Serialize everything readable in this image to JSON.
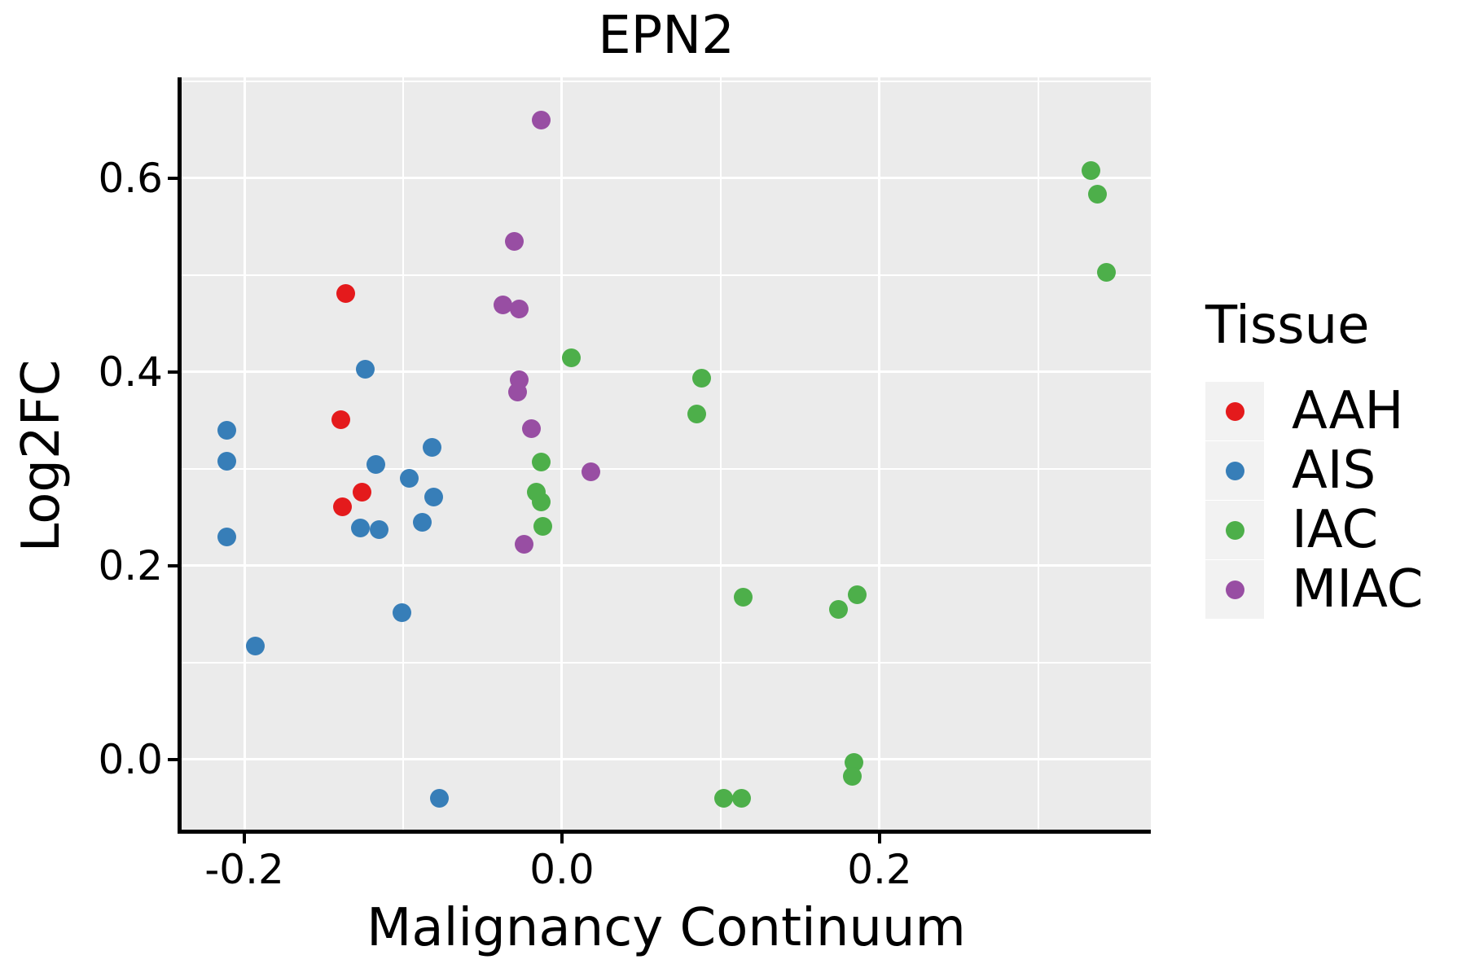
{
  "title": "EPN2",
  "panel_background": "#EBEBEB",
  "grid_color": "#FFFFFF",
  "legend": {
    "title": "Tissue",
    "key_background": "#F2F2F2",
    "entries": [
      {
        "label": "AAH",
        "color": "#E41A1C"
      },
      {
        "label": "AIS",
        "color": "#377EB8"
      },
      {
        "label": "IAC",
        "color": "#4DAF4A"
      },
      {
        "label": "MIAC",
        "color": "#984EA3"
      }
    ]
  },
  "chart_data": {
    "type": "scatter",
    "title": "EPN2",
    "xlabel": "Malignancy Continuum",
    "ylabel": "Log2FC",
    "x_range": [
      -0.2395,
      0.3708
    ],
    "y_range": [
      -0.0723,
      0.7042
    ],
    "x_ticks": [
      -0.2,
      0.0,
      0.2
    ],
    "x_tick_labels": [
      "-0.2",
      "0.0",
      "0.2"
    ],
    "x_minor_ticks": [
      -0.1,
      0.1,
      0.3
    ],
    "y_ticks": [
      0.0,
      0.2,
      0.4,
      0.6
    ],
    "y_tick_labels": [
      "0.0",
      "0.2",
      "0.4",
      "0.6"
    ],
    "y_minor_ticks": [
      0.1,
      0.3,
      0.5,
      0.7
    ],
    "grid": true,
    "legend_position": "right",
    "series": [
      {
        "name": "AAH",
        "color": "#E41A1C",
        "points": [
          [
            -0.136,
            0.481
          ],
          [
            -0.139,
            0.351
          ],
          [
            -0.126,
            0.276
          ],
          [
            -0.138,
            0.261
          ]
        ]
      },
      {
        "name": "AIS",
        "color": "#377EB8",
        "points": [
          [
            -0.211,
            0.34
          ],
          [
            -0.211,
            0.308
          ],
          [
            -0.211,
            0.23
          ],
          [
            -0.193,
            0.117
          ],
          [
            -0.124,
            0.403
          ],
          [
            -0.117,
            0.305
          ],
          [
            -0.096,
            0.29
          ],
          [
            -0.082,
            0.322
          ],
          [
            -0.081,
            0.271
          ],
          [
            -0.088,
            0.245
          ],
          [
            -0.127,
            0.239
          ],
          [
            -0.115,
            0.237
          ],
          [
            -0.101,
            0.152
          ],
          [
            -0.077,
            -0.04
          ]
        ]
      },
      {
        "name": "IAC",
        "color": "#4DAF4A",
        "points": [
          [
            0.006,
            0.415
          ],
          [
            -0.013,
            0.307
          ],
          [
            -0.016,
            0.276
          ],
          [
            -0.013,
            0.266
          ],
          [
            -0.012,
            0.241
          ],
          [
            0.088,
            0.394
          ],
          [
            0.085,
            0.357
          ],
          [
            0.114,
            0.168
          ],
          [
            0.174,
            0.155
          ],
          [
            0.186,
            0.17
          ],
          [
            0.102,
            -0.04
          ],
          [
            0.113,
            -0.04
          ],
          [
            0.184,
            -0.003
          ],
          [
            0.183,
            -0.017
          ],
          [
            0.333,
            0.608
          ],
          [
            0.337,
            0.584
          ],
          [
            0.343,
            0.503
          ]
        ]
      },
      {
        "name": "MIAC",
        "color": "#984EA3",
        "points": [
          [
            -0.013,
            0.66
          ],
          [
            -0.03,
            0.535
          ],
          [
            -0.037,
            0.469
          ],
          [
            -0.027,
            0.465
          ],
          [
            -0.027,
            0.392
          ],
          [
            -0.028,
            0.379
          ],
          [
            -0.019,
            0.342
          ],
          [
            0.018,
            0.297
          ],
          [
            -0.024,
            0.222
          ]
        ]
      }
    ]
  }
}
